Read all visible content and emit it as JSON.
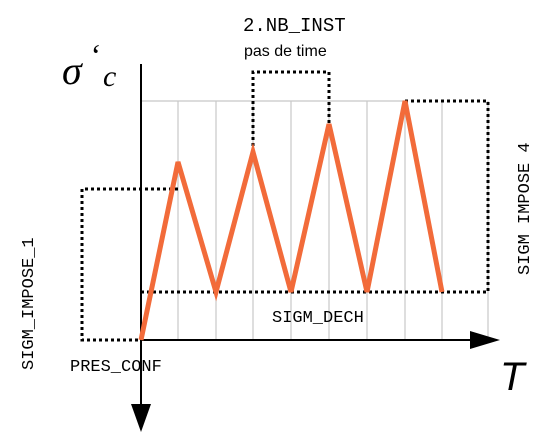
{
  "labels": {
    "sigma_symbol": "σ",
    "prime_mark": "‘",
    "sigma_subscript": "c",
    "time_axis": "T",
    "nb_inst": "2.NB_INST",
    "pas_de_time": "pas de time",
    "sigm_impose_1": "SIGM_IMPOSE_1",
    "sigm_impose_4": "SIGM IMPOSE 4",
    "sigm_dech": "SIGM_DECH",
    "pres_conf": "PRES_CONF"
  },
  "colors": {
    "signal": "#f26b3a",
    "grid": "#c8c8c8",
    "axis": "#000000",
    "dotted": "#000000"
  },
  "signal": {
    "description_levels": [
      "PRES_CONF",
      "SIGM_DECH",
      "SIGM_IMPOSE_1",
      "SIGM_IMPOSE_4"
    ]
  }
}
